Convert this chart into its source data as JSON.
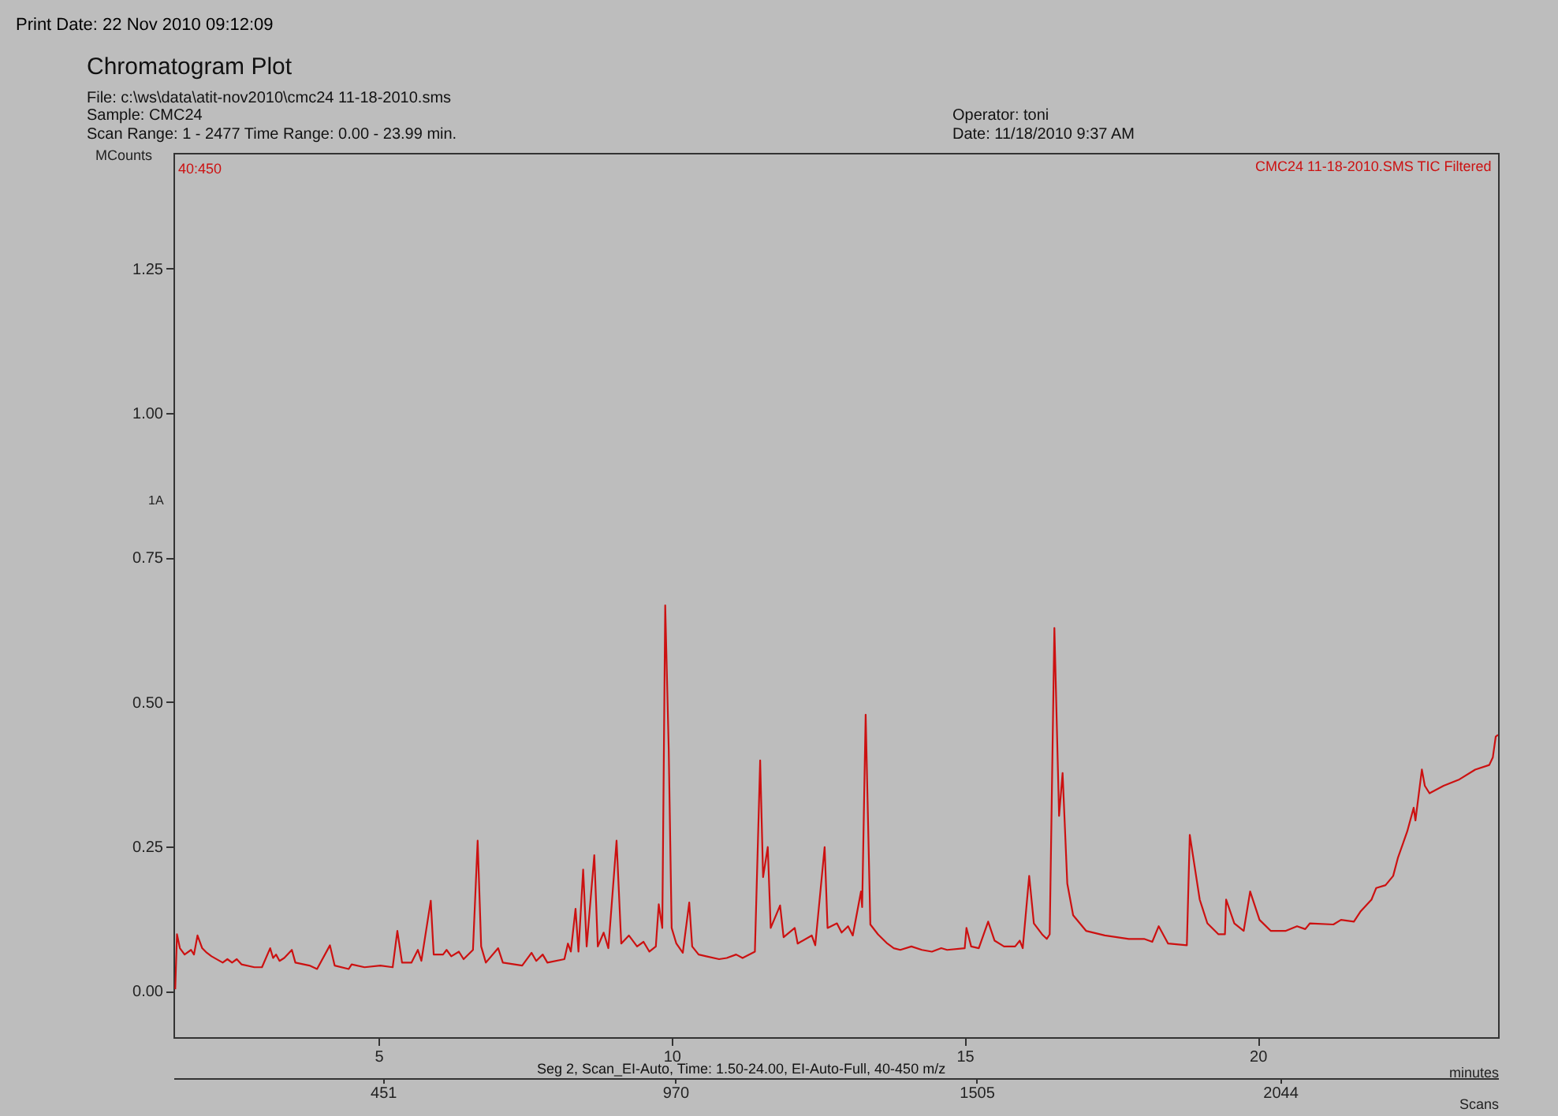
{
  "chart_data": {
    "type": "line",
    "title": "Chromatogram Plot",
    "xlabel": "minutes",
    "ylabel": "MCounts",
    "x2label": "Scans",
    "annotations": [
      "Print Date:  22 Nov 2010 09:12:09",
      "File: c:\\ws\\data\\atit-nov2010\\cmc24 11-18-2010.sms",
      "Sample: CMC24",
      "Scan Range: 1 - 2477 Time Range: 0.00 - 23.99 min.",
      "Operator: toni",
      "Date: 11/18/2010 9:37 AM",
      "40:450",
      "1A",
      "Seg 2, Scan_EI-Auto, Time: 1.50-24.00, EI-Auto-Full, 40-450 m/z"
    ],
    "xlim": [
      1.5,
      24.1
    ],
    "xticks": [
      5,
      10,
      15,
      20
    ],
    "ylim": [
      -0.08,
      1.45
    ],
    "yticks": [
      {
        "value": 0,
        "label": "0.00"
      },
      {
        "value": 0.25,
        "label": "0.25"
      },
      {
        "value": 0.5,
        "label": "0.50"
      },
      {
        "value": 0.75,
        "label": "0.75"
      },
      {
        "value": 1,
        "label": "1.00"
      },
      {
        "value": 1.25,
        "label": "1.25"
      }
    ],
    "x2lim": [
      79,
      2431
    ],
    "x2ticks": [
      451,
      970,
      1505,
      2044
    ],
    "grid": false,
    "legend": "top right",
    "line_style": "solid",
    "marker": "none",
    "x": [
      1.53,
      1.56,
      1.61,
      1.69,
      1.8,
      1.85,
      1.91,
      1.99,
      2.07,
      2.15,
      2.34,
      2.42,
      2.5,
      2.58,
      2.66,
      2.88,
      3.01,
      3.15,
      3.2,
      3.25,
      3.31,
      3.39,
      3.52,
      3.58,
      3.82,
      3.95,
      4.17,
      4.25,
      4.49,
      4.54,
      4.76,
      5.03,
      5.24,
      5.32,
      5.4,
      5.56,
      5.67,
      5.73,
      5.89,
      5.94,
      6.1,
      6.16,
      6.24,
      6.37,
      6.45,
      6.61,
      6.69,
      6.75,
      6.83,
      7.04,
      7.12,
      7.45,
      7.61,
      7.69,
      7.8,
      7.88,
      8.17,
      8.23,
      8.28,
      8.36,
      8.41,
      8.49,
      8.55,
      8.68,
      8.74,
      8.84,
      8.92,
      9.06,
      9.14,
      9.27,
      9.41,
      9.52,
      9.62,
      9.73,
      9.78,
      9.84,
      9.89,
      9.95,
      10.0,
      10.08,
      10.19,
      10.3,
      10.35,
      10.46,
      10.59,
      10.81,
      10.94,
      11.1,
      11.21,
      11.42,
      11.51,
      11.56,
      11.64,
      11.69,
      11.85,
      11.91,
      12.1,
      12.15,
      12.39,
      12.45,
      12.61,
      12.66,
      12.82,
      12.9,
      13.01,
      13.09,
      13.23,
      13.25,
      13.31,
      13.39,
      13.52,
      13.68,
      13.79,
      13.9,
      14.09,
      14.27,
      14.44,
      14.6,
      14.7,
      15.0,
      15.03,
      15.11,
      15.24,
      15.4,
      15.51,
      15.67,
      15.86,
      15.94,
      15.99,
      16.1,
      16.18,
      16.32,
      16.4,
      16.45,
      16.53,
      16.61,
      16.67,
      16.75,
      16.85,
      17.07,
      17.39,
      17.8,
      18.06,
      18.2,
      18.31,
      18.47,
      18.79,
      18.84,
      19.01,
      19.14,
      19.33,
      19.44,
      19.46,
      19.6,
      19.76,
      19.87,
      20.03,
      20.22,
      20.48,
      20.67,
      20.81,
      20.89,
      21.29,
      21.42,
      21.64,
      21.75,
      21.94,
      22.02,
      22.18,
      22.31,
      22.39,
      22.55,
      22.66,
      22.69,
      22.8,
      22.85,
      22.93,
      23.17,
      23.44,
      23.71,
      23.95,
      24.01,
      24.06,
      24.1
    ],
    "series": [
      {
        "name": "CMC24 11-18-2010.SMS TIC Filtered",
        "color": "#cc1111",
        "values": [
          0.003,
          0.098,
          0.074,
          0.063,
          0.071,
          0.063,
          0.096,
          0.074,
          0.066,
          0.06,
          0.049,
          0.055,
          0.049,
          0.055,
          0.046,
          0.041,
          0.041,
          0.074,
          0.057,
          0.063,
          0.052,
          0.057,
          0.071,
          0.049,
          0.044,
          0.038,
          0.079,
          0.044,
          0.038,
          0.046,
          0.041,
          0.044,
          0.041,
          0.104,
          0.049,
          0.049,
          0.071,
          0.052,
          0.156,
          0.063,
          0.063,
          0.071,
          0.06,
          0.068,
          0.055,
          0.071,
          0.26,
          0.077,
          0.049,
          0.074,
          0.049,
          0.044,
          0.066,
          0.052,
          0.063,
          0.049,
          0.055,
          0.082,
          0.068,
          0.142,
          0.068,
          0.21,
          0.077,
          0.235,
          0.077,
          0.101,
          0.074,
          0.26,
          0.082,
          0.096,
          0.077,
          0.085,
          0.068,
          0.077,
          0.15,
          0.109,
          0.667,
          0.418,
          0.109,
          0.082,
          0.066,
          0.153,
          0.077,
          0.063,
          0.06,
          0.055,
          0.057,
          0.063,
          0.057,
          0.068,
          0.399,
          0.197,
          0.249,
          0.109,
          0.148,
          0.093,
          0.109,
          0.082,
          0.096,
          0.079,
          0.249,
          0.109,
          0.117,
          0.101,
          0.112,
          0.096,
          0.172,
          0.145,
          0.478,
          0.115,
          0.098,
          0.082,
          0.074,
          0.071,
          0.077,
          0.071,
          0.068,
          0.074,
          0.071,
          0.074,
          0.109,
          0.077,
          0.074,
          0.12,
          0.087,
          0.077,
          0.077,
          0.087,
          0.074,
          0.199,
          0.117,
          0.098,
          0.09,
          0.098,
          0.628,
          0.303,
          0.377,
          0.186,
          0.131,
          0.104,
          0.096,
          0.09,
          0.09,
          0.085,
          0.112,
          0.082,
          0.079,
          0.27,
          0.158,
          0.117,
          0.098,
          0.098,
          0.158,
          0.117,
          0.104,
          0.172,
          0.123,
          0.104,
          0.104,
          0.112,
          0.107,
          0.117,
          0.115,
          0.123,
          0.12,
          0.137,
          0.158,
          0.178,
          0.183,
          0.199,
          0.23,
          0.276,
          0.317,
          0.295,
          0.383,
          0.355,
          0.342,
          0.355,
          0.366,
          0.383,
          0.391,
          0.404,
          0.44,
          0.443
        ]
      }
    ]
  }
}
